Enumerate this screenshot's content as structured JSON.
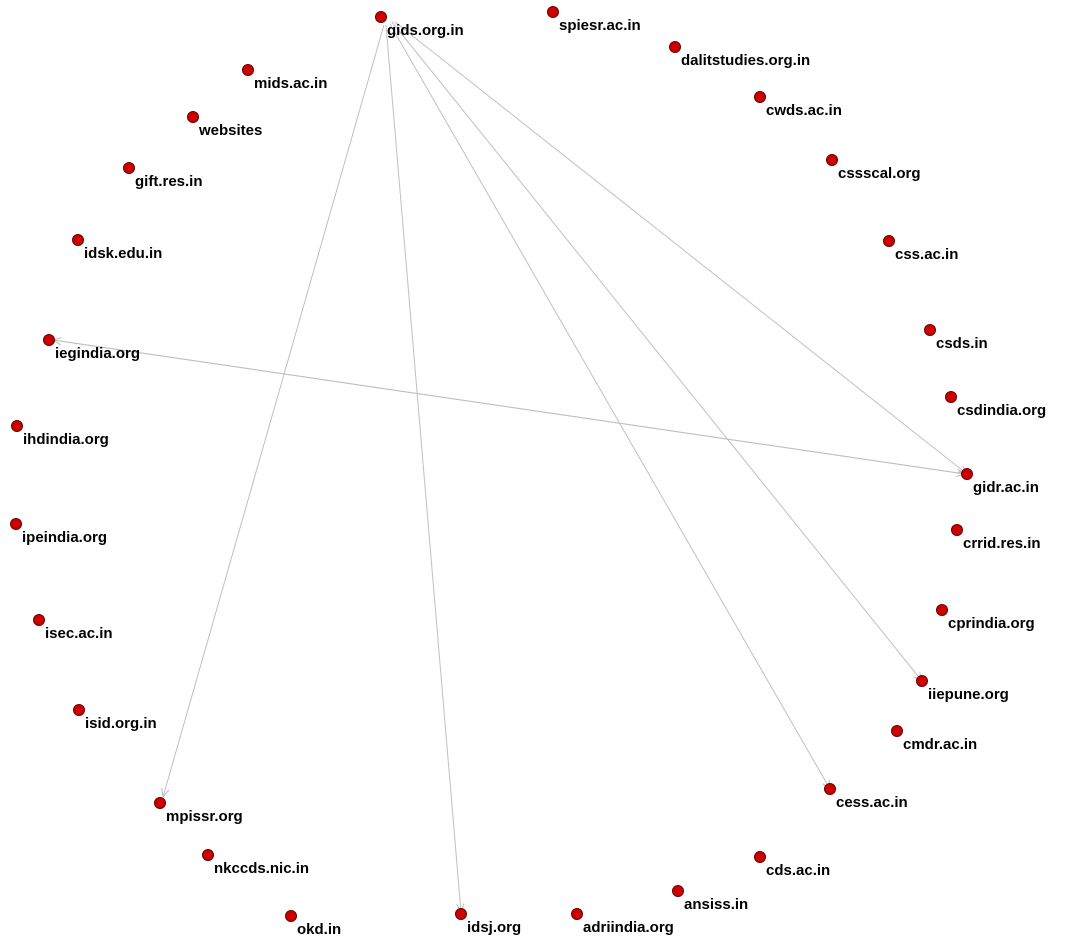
{
  "graph": {
    "node_color": "#cc0000",
    "edge_color": "#c0c0c0",
    "label_color": "#000000",
    "nodes": [
      {
        "id": "gids",
        "label": "gids.org.in"
      },
      {
        "id": "spiesr",
        "label": "spiesr.ac.in"
      },
      {
        "id": "dalitstudies",
        "label": "dalitstudies.org.in"
      },
      {
        "id": "mids",
        "label": "mids.ac.in"
      },
      {
        "id": "cwds",
        "label": "cwds.ac.in"
      },
      {
        "id": "websites",
        "label": "websites"
      },
      {
        "id": "gift",
        "label": "gift.res.in"
      },
      {
        "id": "cssscal",
        "label": "cssscal.org"
      },
      {
        "id": "idsk",
        "label": "idsk.edu.in"
      },
      {
        "id": "css",
        "label": "css.ac.in"
      },
      {
        "id": "csds",
        "label": "csds.in"
      },
      {
        "id": "iegindia",
        "label": "iegindia.org"
      },
      {
        "id": "csdindia",
        "label": "csdindia.org"
      },
      {
        "id": "ihdindia",
        "label": "ihdindia.org"
      },
      {
        "id": "gidr",
        "label": "gidr.ac.in"
      },
      {
        "id": "ipeindia",
        "label": "ipeindia.org"
      },
      {
        "id": "crrid",
        "label": "crrid.res.in"
      },
      {
        "id": "cprindia",
        "label": "cprindia.org"
      },
      {
        "id": "isec",
        "label": "isec.ac.in"
      },
      {
        "id": "iiepune",
        "label": "iiepune.org"
      },
      {
        "id": "isid",
        "label": "isid.org.in"
      },
      {
        "id": "cmdr",
        "label": "cmdr.ac.in"
      },
      {
        "id": "mpissr",
        "label": "mpissr.org"
      },
      {
        "id": "cess",
        "label": "cess.ac.in"
      },
      {
        "id": "nkccds",
        "label": "nkccds.nic.in"
      },
      {
        "id": "cds",
        "label": "cds.ac.in"
      },
      {
        "id": "ansiss",
        "label": "ansiss.in"
      },
      {
        "id": "okd",
        "label": "okd.in"
      },
      {
        "id": "idsj",
        "label": "idsj.org"
      },
      {
        "id": "adriindia",
        "label": "adriindia.org"
      }
    ],
    "edges": [
      {
        "from": "gids",
        "to": "mpissr"
      },
      {
        "from": "gids",
        "to": "idsj"
      },
      {
        "from": "gids",
        "to": "cess"
      },
      {
        "from": "gids",
        "to": "iiepune"
      },
      {
        "from": "gids",
        "to": "gidr"
      },
      {
        "from": "gidr",
        "to": "iegindia"
      },
      {
        "from": "iegindia",
        "to": "gidr"
      }
    ]
  }
}
